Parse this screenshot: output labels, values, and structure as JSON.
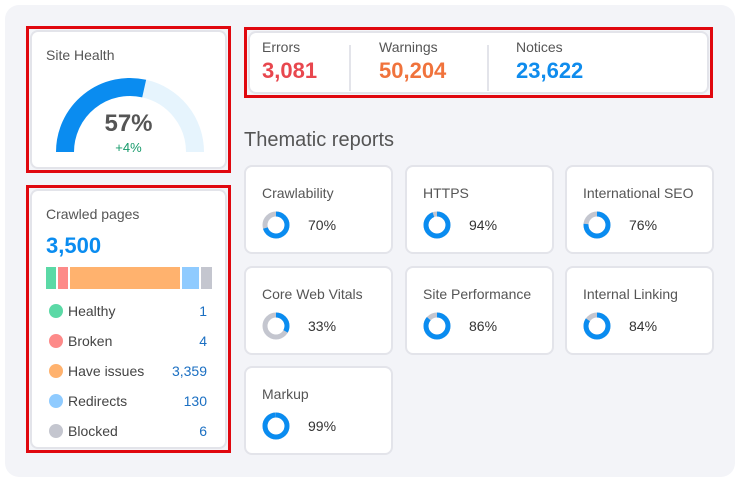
{
  "colors": {
    "blue": "#0a8cf0",
    "light_blue": "#e6f4fd",
    "grey": "#c4c6cf",
    "errors": "#e8474e",
    "warnings": "#f0733c",
    "notices": "#0f8ced",
    "delta": "#159a6a"
  },
  "site_health": {
    "title": "Site Health",
    "value": "57%",
    "percent": 57,
    "delta": "+4%"
  },
  "crawled": {
    "title": "Crawled pages",
    "total": "3,500",
    "items": [
      {
        "label": "Healthy",
        "value": "1",
        "color": "#5bd9a6",
        "bar_share": 6
      },
      {
        "label": "Broken",
        "value": "4",
        "color": "#fd8a89",
        "bar_share": 6
      },
      {
        "label": "Have issues",
        "value": "3,359",
        "color": "#ffb26e",
        "bar_share": 68
      },
      {
        "label": "Redirects",
        "value": "130",
        "color": "#8fcbff",
        "bar_share": 10
      },
      {
        "label": "Blocked",
        "value": "6",
        "color": "#c4c6cf",
        "bar_share": 7
      }
    ]
  },
  "issues": [
    {
      "label": "Errors",
      "value": "3,081"
    },
    {
      "label": "Warnings",
      "value": "50,204"
    },
    {
      "label": "Notices",
      "value": "23,622"
    }
  ],
  "thematic": {
    "title": "Thematic reports",
    "reports": [
      {
        "label": "Crawlability",
        "value": "70%",
        "percent": 70
      },
      {
        "label": "HTTPS",
        "value": "94%",
        "percent": 94
      },
      {
        "label": "International SEO",
        "value": "76%",
        "percent": 76
      },
      {
        "label": "Core Web Vitals",
        "value": "33%",
        "percent": 33
      },
      {
        "label": "Site Performance",
        "value": "86%",
        "percent": 86
      },
      {
        "label": "Internal Linking",
        "value": "84%",
        "percent": 84
      },
      {
        "label": "Markup",
        "value": "99%",
        "percent": 99
      }
    ]
  }
}
